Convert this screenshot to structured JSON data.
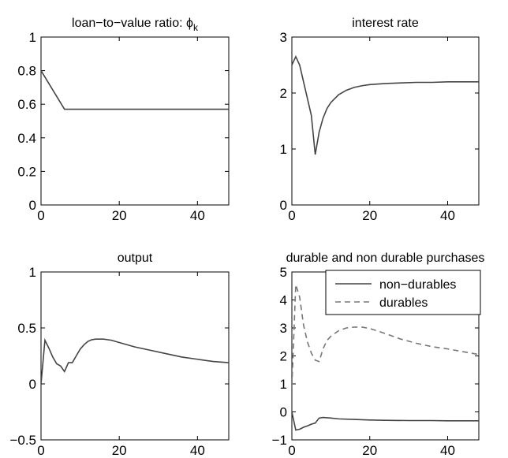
{
  "figure": {
    "background": "#ffffff",
    "line_color": "#444444",
    "dashed_color": "#777777"
  },
  "chart_data": [
    {
      "type": "line",
      "title": "loan−to−value ratio: ϕ",
      "title_subscript": "k",
      "xlim": [
        0,
        48
      ],
      "ylim": [
        0,
        1
      ],
      "xticks": [
        0,
        20,
        40
      ],
      "yticks": [
        0,
        0.2,
        0.4,
        0.6,
        0.8,
        1
      ],
      "ytick_labels": [
        "0",
        "0.2",
        "0.4",
        "0.6",
        "0.8",
        "1"
      ],
      "series": [
        {
          "style": "solid",
          "x": [
            0,
            6,
            48
          ],
          "y": [
            0.8,
            0.57,
            0.57
          ]
        }
      ]
    },
    {
      "type": "line",
      "title": "interest rate",
      "xlim": [
        0,
        48
      ],
      "ylim": [
        0,
        3
      ],
      "xticks": [
        0,
        20,
        40
      ],
      "yticks": [
        0,
        1,
        2,
        3
      ],
      "ytick_labels": [
        "0",
        "1",
        "2",
        "3"
      ],
      "series": [
        {
          "style": "solid",
          "x": [
            0,
            1,
            2,
            3,
            4,
            5,
            6,
            7,
            8,
            9,
            10,
            12,
            14,
            16,
            18,
            20,
            24,
            28,
            32,
            36,
            40,
            44,
            48
          ],
          "y": [
            2.5,
            2.65,
            2.5,
            2.2,
            1.9,
            1.6,
            0.9,
            1.3,
            1.55,
            1.72,
            1.83,
            1.97,
            2.05,
            2.1,
            2.13,
            2.15,
            2.17,
            2.18,
            2.19,
            2.19,
            2.2,
            2.2,
            2.2
          ]
        }
      ]
    },
    {
      "type": "line",
      "title": "output",
      "xlim": [
        0,
        48
      ],
      "ylim": [
        -0.5,
        1
      ],
      "xticks": [
        0,
        20,
        40
      ],
      "yticks": [
        -0.5,
        0,
        0.5,
        1
      ],
      "ytick_labels": [
        "−0.5",
        "0",
        "0.5",
        "1"
      ],
      "series": [
        {
          "style": "solid",
          "x": [
            0,
            1,
            2,
            3,
            4,
            5,
            6,
            7,
            8,
            9,
            10,
            11,
            12,
            13,
            14,
            15,
            16,
            18,
            20,
            24,
            28,
            32,
            36,
            40,
            44,
            48
          ],
          "y": [
            0.0,
            0.39,
            0.32,
            0.24,
            0.18,
            0.16,
            0.11,
            0.19,
            0.19,
            0.25,
            0.31,
            0.35,
            0.38,
            0.395,
            0.4,
            0.4,
            0.4,
            0.39,
            0.37,
            0.33,
            0.3,
            0.27,
            0.24,
            0.22,
            0.2,
            0.19
          ]
        }
      ]
    },
    {
      "type": "line",
      "title": "durable and non durable purchases",
      "xlim": [
        0,
        48
      ],
      "ylim": [
        -1,
        5
      ],
      "xticks": [
        0,
        20,
        40
      ],
      "yticks": [
        -1,
        0,
        1,
        2,
        3,
        4,
        5
      ],
      "ytick_labels": [
        "−1",
        "0",
        "1",
        "2",
        "3",
        "4",
        "5"
      ],
      "legend": {
        "position": "top-right"
      },
      "series": [
        {
          "name": "non−durables",
          "style": "solid",
          "x": [
            0,
            1,
            2,
            3,
            4,
            5,
            6,
            7,
            8,
            10,
            12,
            16,
            20,
            24,
            30,
            36,
            40,
            48
          ],
          "y": [
            0.0,
            -0.65,
            -0.62,
            -0.55,
            -0.5,
            -0.44,
            -0.4,
            -0.22,
            -0.2,
            -0.22,
            -0.25,
            -0.27,
            -0.29,
            -0.3,
            -0.31,
            -0.31,
            -0.32,
            -0.32
          ]
        },
        {
          "name": "durables",
          "style": "dashed",
          "x": [
            0,
            1,
            2,
            3,
            4,
            5,
            6,
            7,
            8,
            9,
            10,
            12,
            14,
            16,
            18,
            20,
            24,
            28,
            32,
            36,
            40,
            44,
            48
          ],
          "y": [
            0.9,
            4.55,
            4.1,
            3.1,
            2.5,
            2.1,
            1.85,
            1.8,
            2.25,
            2.55,
            2.7,
            2.9,
            3.0,
            3.03,
            3.03,
            2.98,
            2.8,
            2.6,
            2.45,
            2.33,
            2.25,
            2.15,
            2.05
          ]
        }
      ]
    }
  ]
}
